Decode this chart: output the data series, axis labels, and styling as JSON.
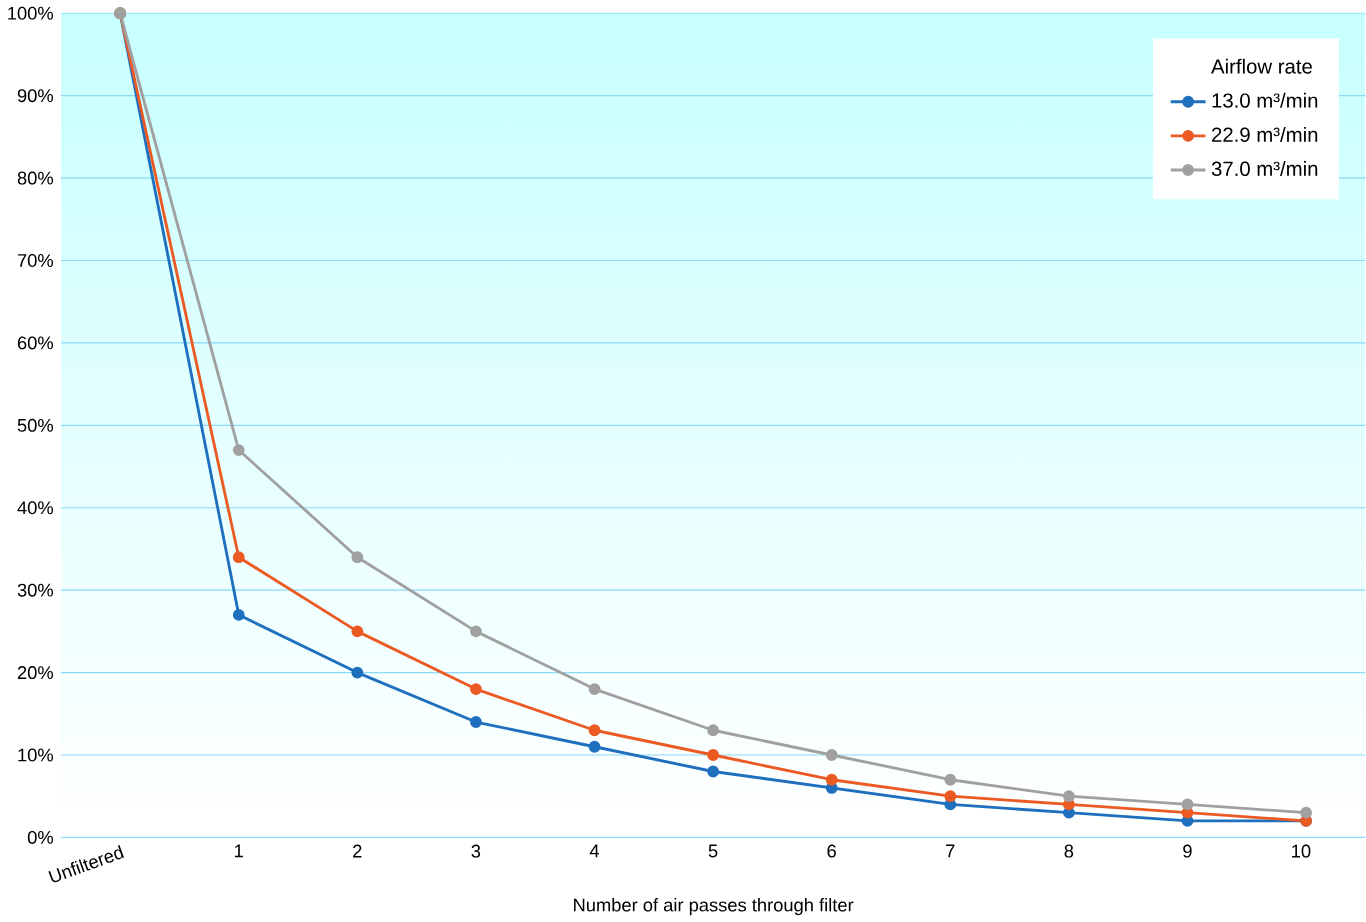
{
  "chart_data": {
    "type": "line",
    "xlabel": "Number of air passes through filter",
    "legend_title": "Airflow rate",
    "categories": [
      "Unfiltered",
      "1",
      "2",
      "3",
      "4",
      "5",
      "6",
      "7",
      "8",
      "9",
      "10"
    ],
    "series": [
      {
        "name": "13.0 m³/min",
        "color": "#1f6fbf",
        "values": [
          100,
          27,
          20,
          14,
          11,
          8,
          6,
          4,
          3,
          2,
          2
        ]
      },
      {
        "name": "22.9 m³/min",
        "color": "#ec5a24",
        "values": [
          100,
          34,
          25,
          18,
          13,
          10,
          7,
          5,
          4,
          3,
          2
        ]
      },
      {
        "name": "37.0 m³/min",
        "color": "#a0a0a0",
        "values": [
          100,
          47,
          34,
          25,
          18,
          13,
          10,
          7,
          5,
          4,
          3
        ]
      }
    ],
    "ylim": [
      0,
      100
    ],
    "yticks": [
      {
        "value": 0,
        "label": "0%"
      },
      {
        "value": 10,
        "label": "10%"
      },
      {
        "value": 20,
        "label": "20%"
      },
      {
        "value": 30,
        "label": "30%"
      },
      {
        "value": 40,
        "label": "40%"
      },
      {
        "value": 50,
        "label": "50%"
      },
      {
        "value": 60,
        "label": "60%"
      },
      {
        "value": 70,
        "label": "70%"
      },
      {
        "value": 80,
        "label": "80%"
      },
      {
        "value": 90,
        "label": "90%"
      },
      {
        "value": 100,
        "label": "100%"
      }
    ],
    "grid": "y",
    "legend": "top right",
    "marker": "circle",
    "line_style": "solid"
  }
}
